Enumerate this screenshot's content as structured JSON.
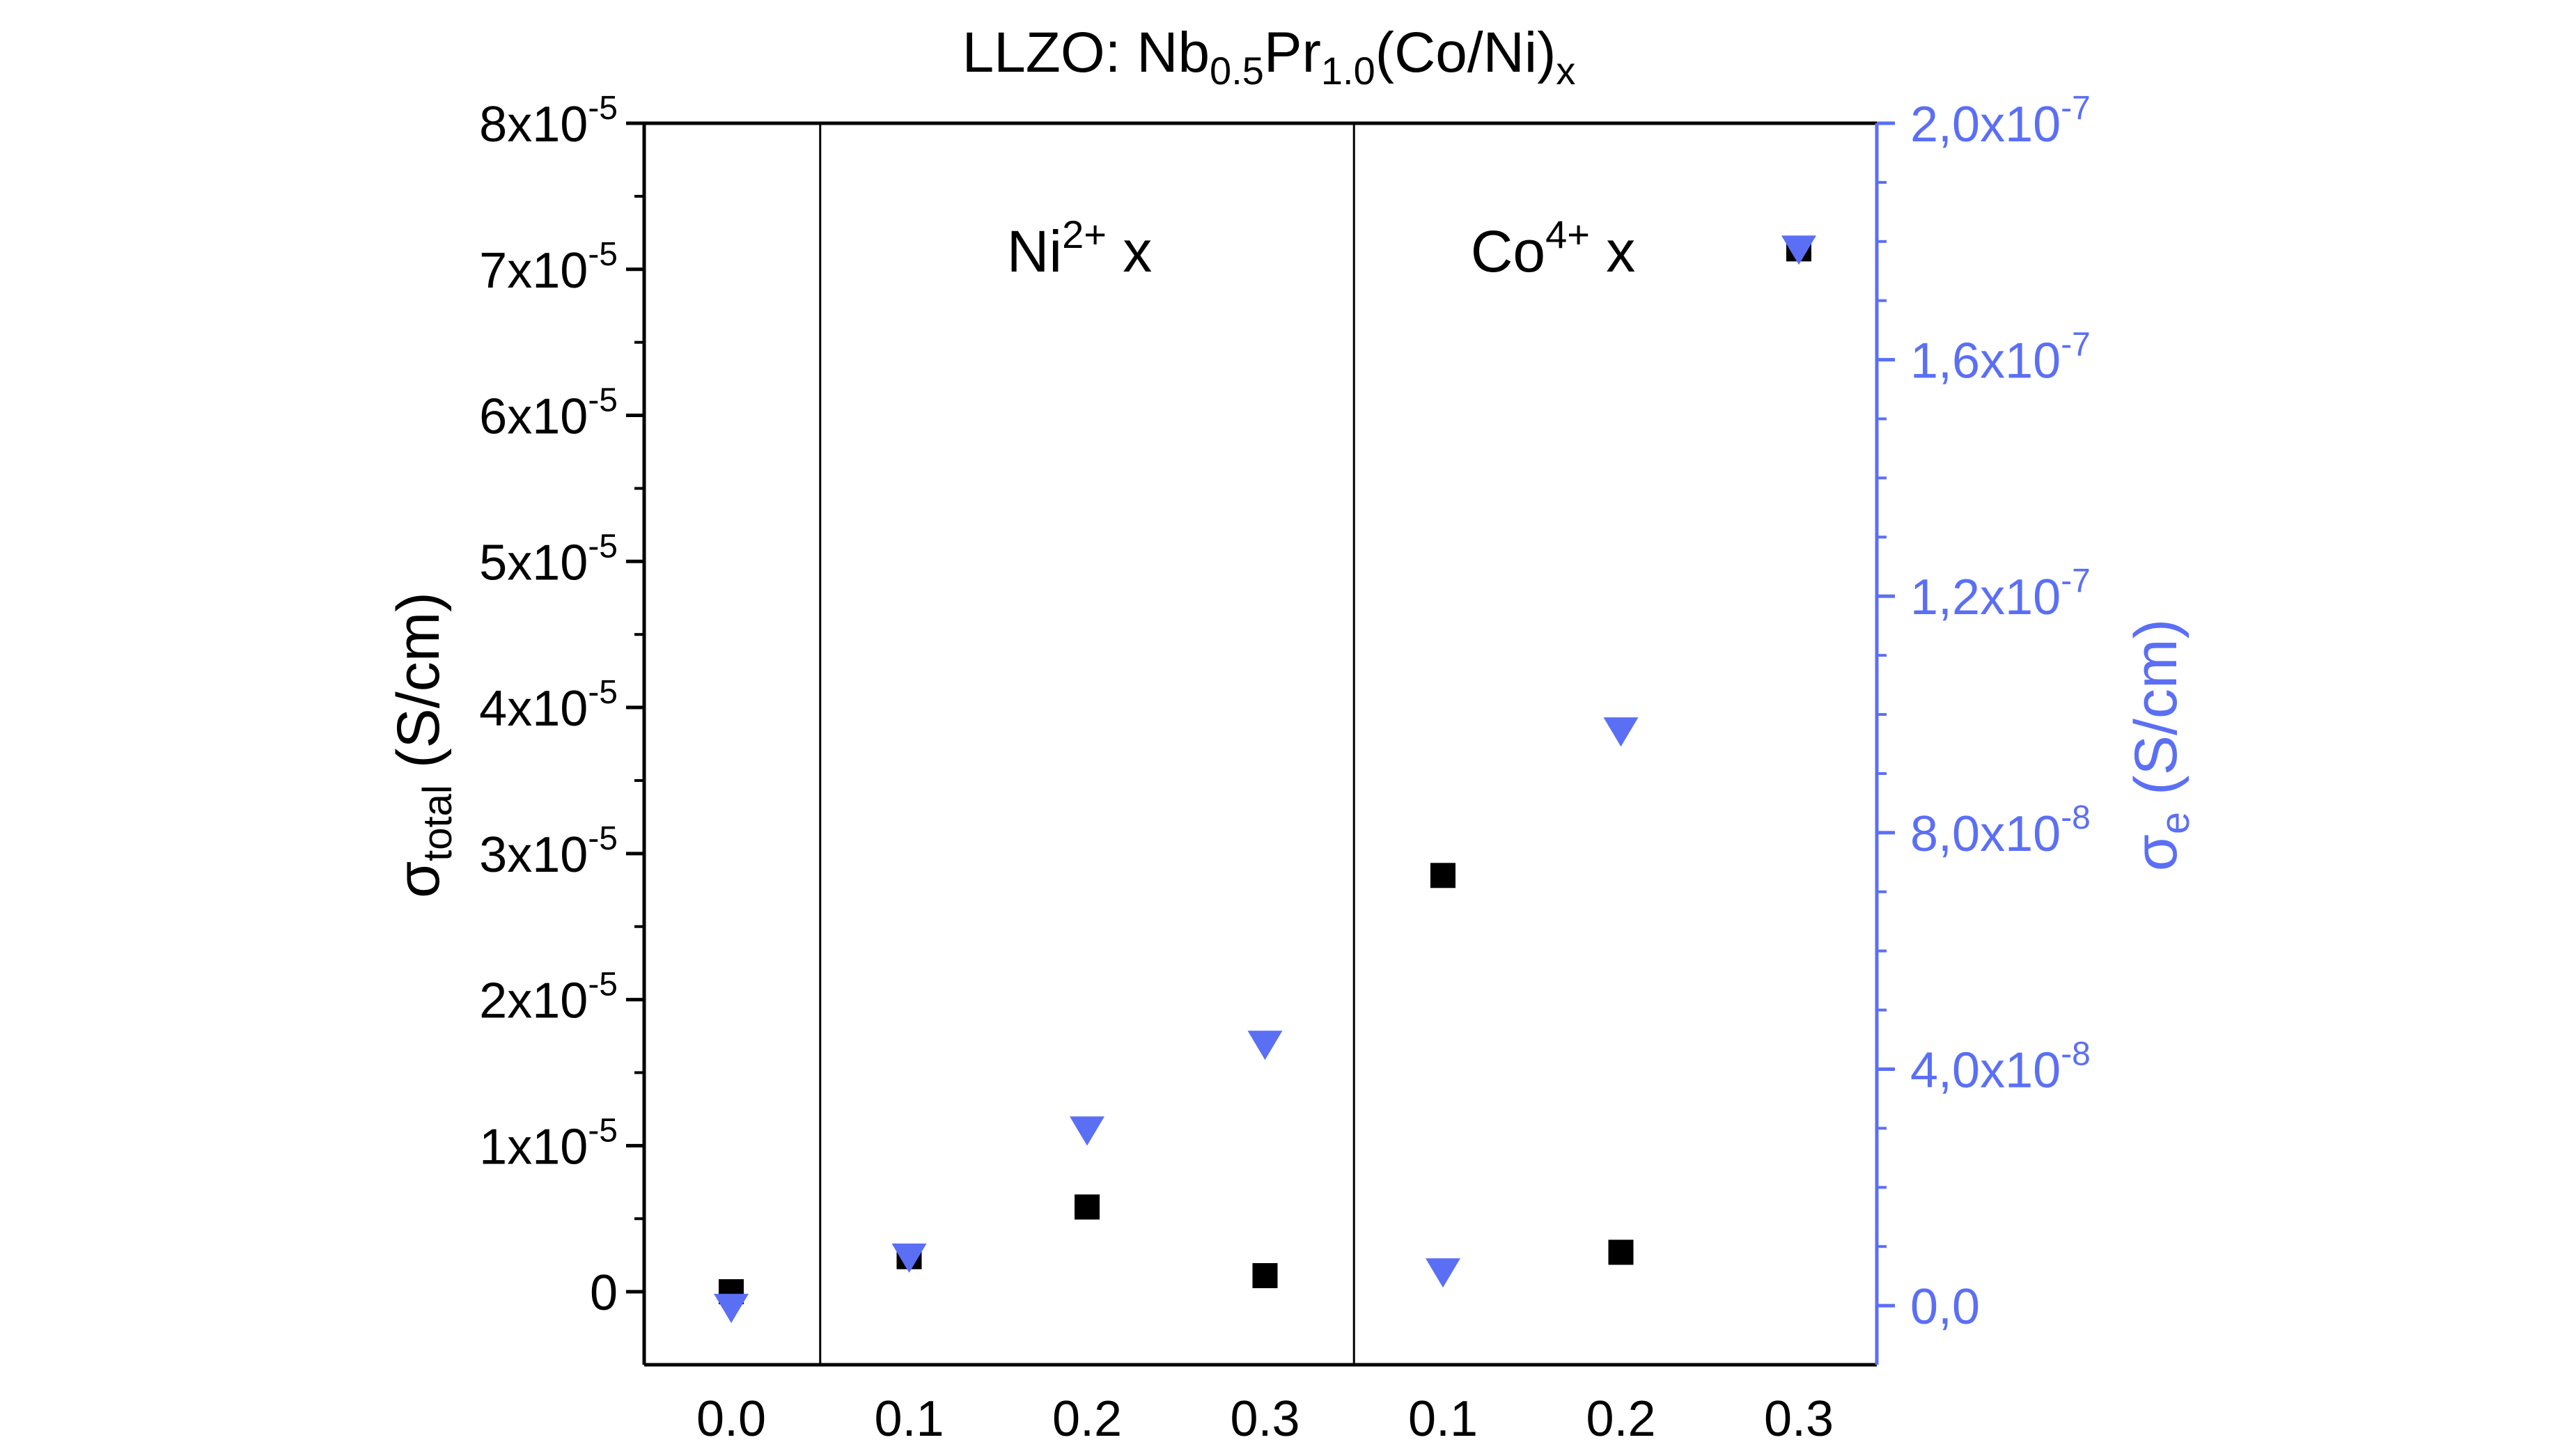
{
  "chart_data": {
    "type": "scatter",
    "title_parts": {
      "base": "LLZO: Nb",
      "sub1": "0.5",
      "mid": "Pr",
      "sub2": "1.0",
      "paren": "(Co/Ni)",
      "sub3": "x"
    },
    "categories": [
      "0.0",
      "0.1",
      "0.2",
      "0.3",
      "0.1",
      "0.2",
      "0.3"
    ],
    "group_labels": [
      {
        "base": "Ni",
        "sup": "2+",
        "tail": " x"
      },
      {
        "base": "Co",
        "sup": "4+",
        "tail": " x"
      }
    ],
    "group_dividers_after": [
      0,
      3
    ],
    "left_axis": {
      "label_parts": {
        "sym": "σ",
        "sub": "total",
        "unit": " (S/cm)"
      },
      "ylim": [
        -5e-06,
        8e-05
      ],
      "ticks": [
        {
          "value": 0,
          "base": "0",
          "sup": ""
        },
        {
          "value": 1e-05,
          "base": "1x10",
          "sup": "-5"
        },
        {
          "value": 2e-05,
          "base": "2x10",
          "sup": "-5"
        },
        {
          "value": 3e-05,
          "base": "3x10",
          "sup": "-5"
        },
        {
          "value": 4e-05,
          "base": "4x10",
          "sup": "-5"
        },
        {
          "value": 5e-05,
          "base": "5x10",
          "sup": "-5"
        },
        {
          "value": 6e-05,
          "base": "6x10",
          "sup": "-5"
        },
        {
          "value": 7e-05,
          "base": "7x10",
          "sup": "-5"
        },
        {
          "value": 8e-05,
          "base": "8x10",
          "sup": "-5"
        }
      ]
    },
    "right_axis": {
      "label_parts": {
        "sym": "σ",
        "sub": "e",
        "unit": " (S/cm)"
      },
      "ylim": [
        -1e-08,
        2e-07
      ],
      "ticks": [
        {
          "value": 0,
          "base": "0,0",
          "sup": ""
        },
        {
          "value": 4e-08,
          "base": "4,0x10",
          "sup": "-8"
        },
        {
          "value": 8e-08,
          "base": "8,0x10",
          "sup": "-8"
        },
        {
          "value": 1.2e-07,
          "base": "1,2x10",
          "sup": "-7"
        },
        {
          "value": 1.6e-07,
          "base": "1,6x10",
          "sup": "-7"
        },
        {
          "value": 2e-07,
          "base": "2,0x10",
          "sup": "-7"
        }
      ]
    },
    "series": [
      {
        "marker": "square",
        "color": "#000000",
        "axis": "left",
        "values": [
          0.0,
          2.4e-06,
          5.8e-06,
          1.1e-06,
          2.85e-05,
          2.7e-06,
          7.14e-05
        ]
      },
      {
        "marker": "triangle-down",
        "color": "#5b6ff5",
        "axis": "right",
        "values": [
          0.0,
          8.5e-09,
          3e-08,
          4.45e-08,
          6e-09,
          9.75e-08,
          1.79e-07
        ]
      }
    ],
    "grid": false,
    "legend": "none"
  }
}
